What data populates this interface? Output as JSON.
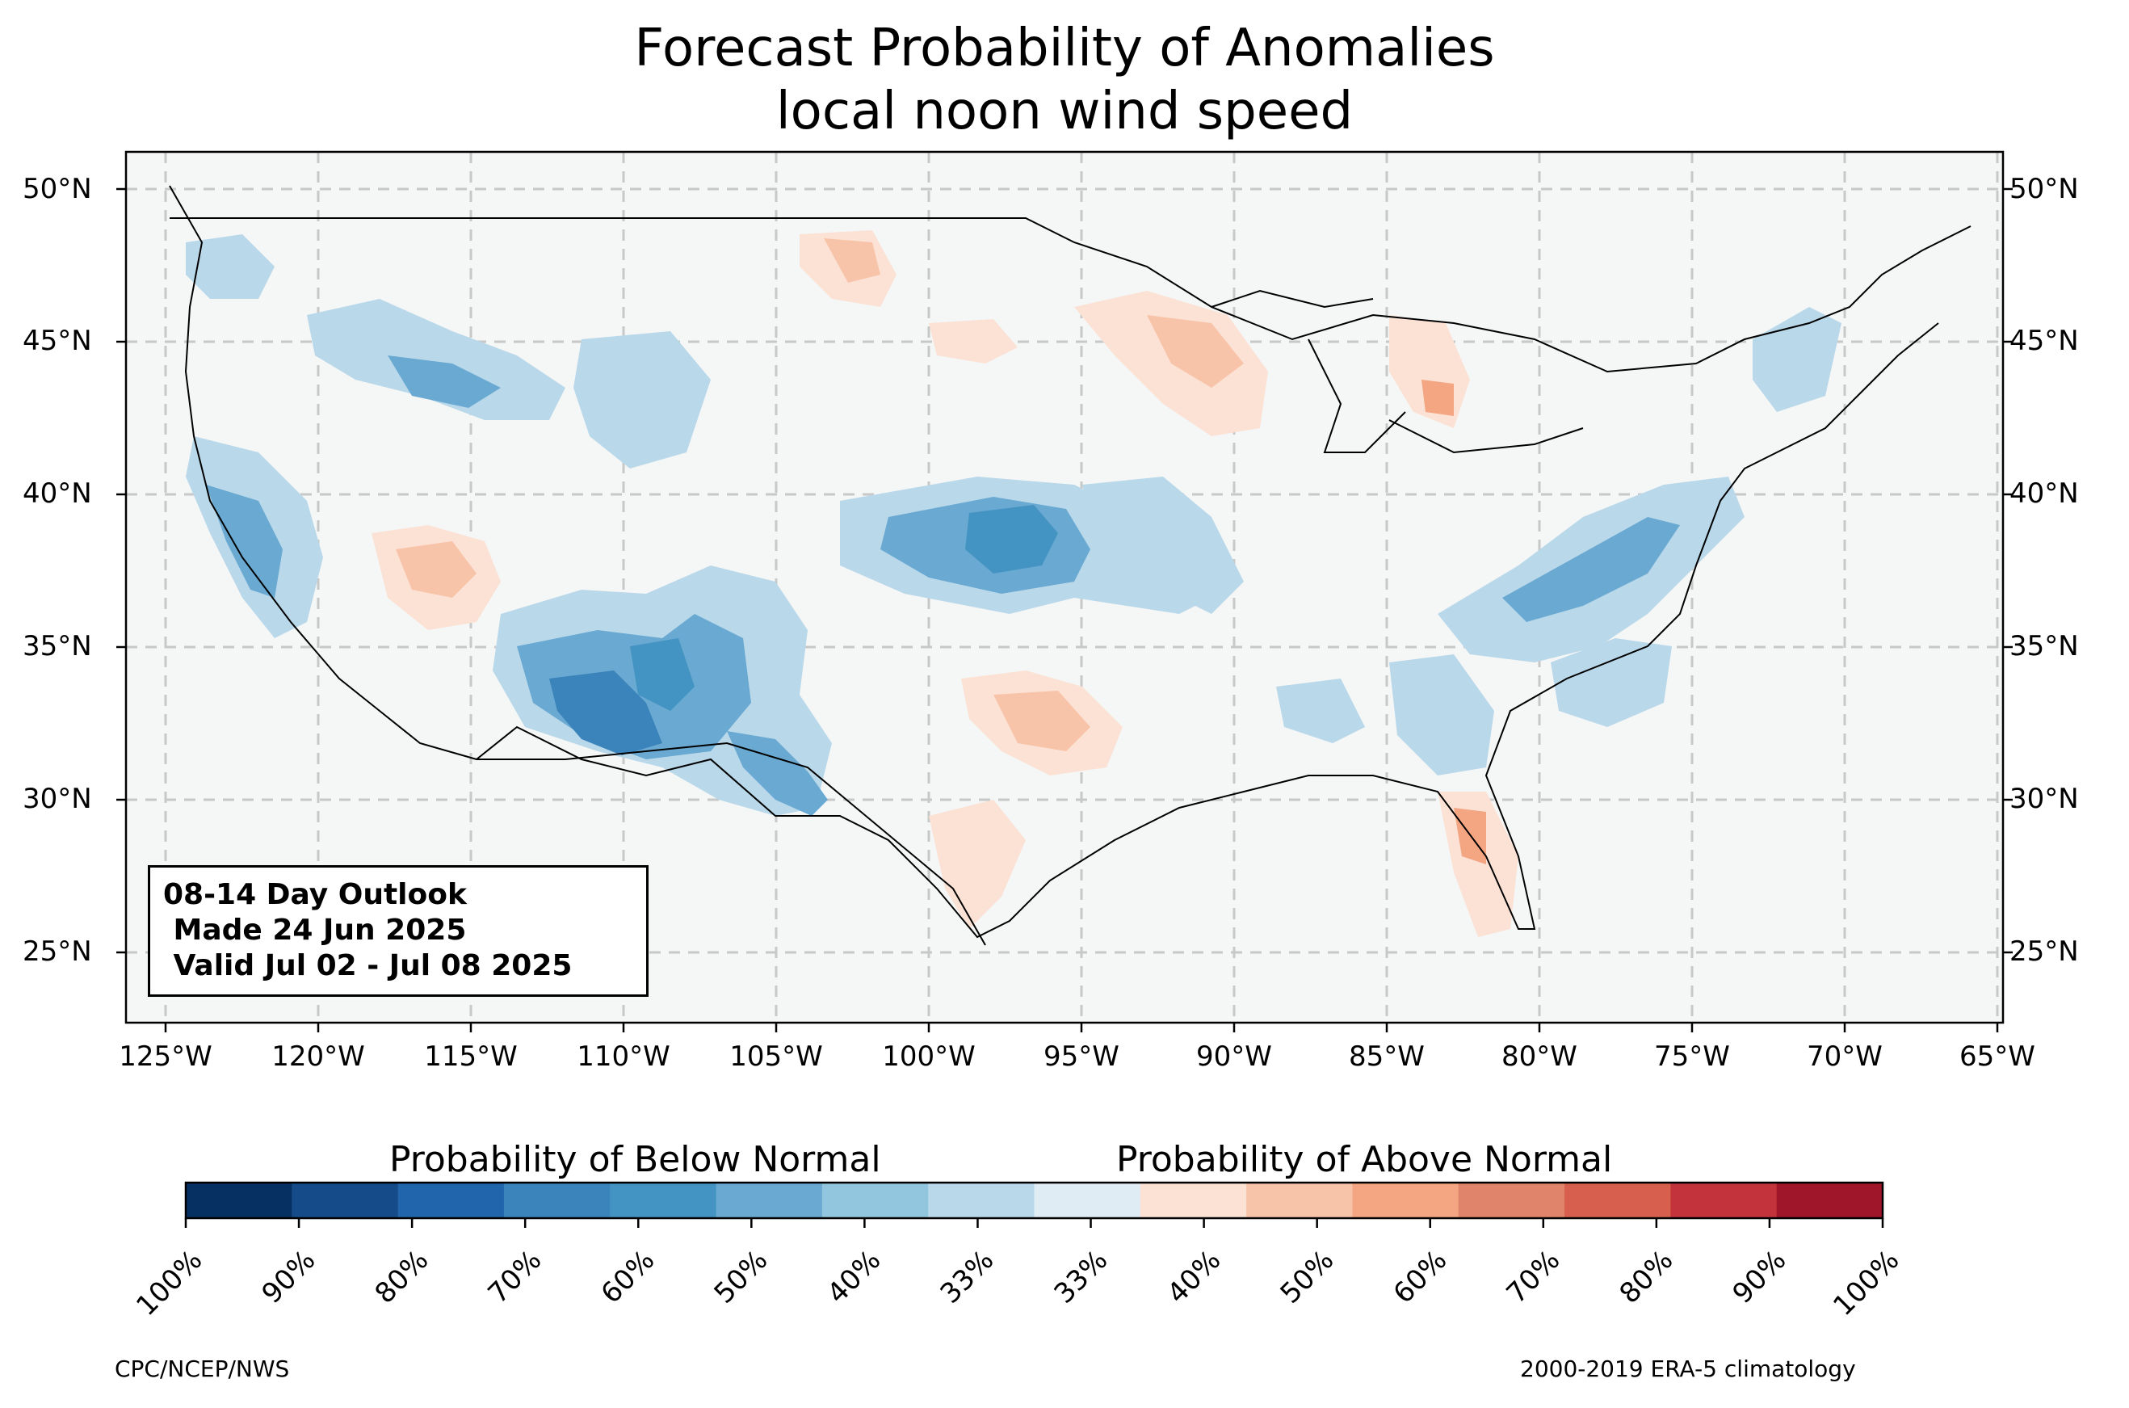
{
  "title": {
    "line1": "Forecast Probability of Anomalies",
    "line2": "local noon wind speed"
  },
  "info_box": {
    "line1": "08-14 Day Outlook",
    "line2": " Made 24 Jun 2025",
    "line3": " Valid Jul 02 - Jul 08 2025"
  },
  "axes": {
    "lat_labels": [
      "50°N",
      "45°N",
      "40°N",
      "35°N",
      "30°N",
      "25°N"
    ],
    "lon_labels": [
      "125°W",
      "120°W",
      "115°W",
      "110°W",
      "105°W",
      "100°W",
      "95°W",
      "90°W",
      "85°W",
      "80°W",
      "75°W",
      "70°W",
      "65°W"
    ],
    "lat_range": [
      22.7,
      51.2
    ],
    "lon_range": [
      -126.3,
      -64.9
    ],
    "grid": true
  },
  "colorbar": {
    "below_label": "Probability of Below Normal",
    "above_label": "Probability of Above Normal",
    "tick_labels": [
      "100%",
      "90%",
      "80%",
      "70%",
      "60%",
      "50%",
      "40%",
      "33%",
      "33%",
      "40%",
      "50%",
      "60%",
      "70%",
      "80%",
      "90%",
      "100%"
    ],
    "colors": [
      "#053061",
      "#144b88",
      "#2166ac",
      "#3a84bb",
      "#4393c3",
      "#6aa9d1",
      "#92c5de",
      "#b9d8ea",
      "#dfecf4",
      "#fbe2d5",
      "#f8c4a9",
      "#f4a582",
      "#e0846b",
      "#d6604d",
      "#c2333c",
      "#9f1529"
    ]
  },
  "credits": {
    "left": "CPC/NCEP/NWS",
    "right": "2000-2019 ERA-5 climatology"
  },
  "map_colors": {
    "land": "#f5f6f6",
    "ocean": "#f5f6f6",
    "border": "#000000",
    "county": "#999999"
  }
}
